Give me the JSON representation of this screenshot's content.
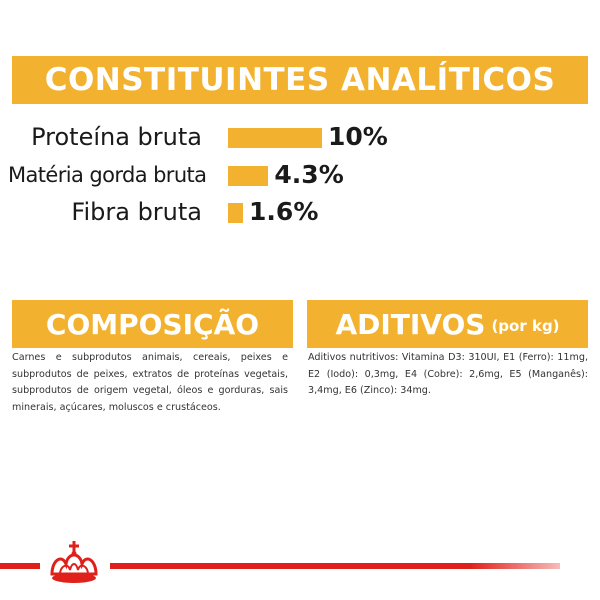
{
  "analytics": {
    "title": "CONSTITUINTES ANALÍTICOS",
    "rows": [
      {
        "name": "Proteína bruta",
        "value": "10%",
        "level": 10
      },
      {
        "name": "Matéria gorda bruta",
        "value": "4.3%",
        "level": 4.3
      },
      {
        "name": "Fibra bruta",
        "value": "1.6%",
        "level": 1.6
      }
    ]
  },
  "composition": {
    "title": "COMPOSIÇÃO",
    "text": "Carnes e subprodutos animais, cereais, peixes e subprodutos de peixes, extratos de proteínas vegetais, subprodutos de origem vegetal, óleos e gorduras, sais minerais, açúcares, moluscos e crustáceos."
  },
  "additives": {
    "title": "ADITIVOS",
    "unit": "(por kg)",
    "text": "Aditivos nutritivos: Vitamina D3: 310UI, E1 (Ferro): 11mg, E2 (Iodo): 0,3mg, E4 (Cobre): 2,6mg, E5 (Manganês): 3,4mg, E6 (Zinco): 34mg."
  },
  "colors": {
    "accent": "#f2b230",
    "brand_red": "#e0201b"
  },
  "icons": {
    "logo": "crown-icon"
  }
}
